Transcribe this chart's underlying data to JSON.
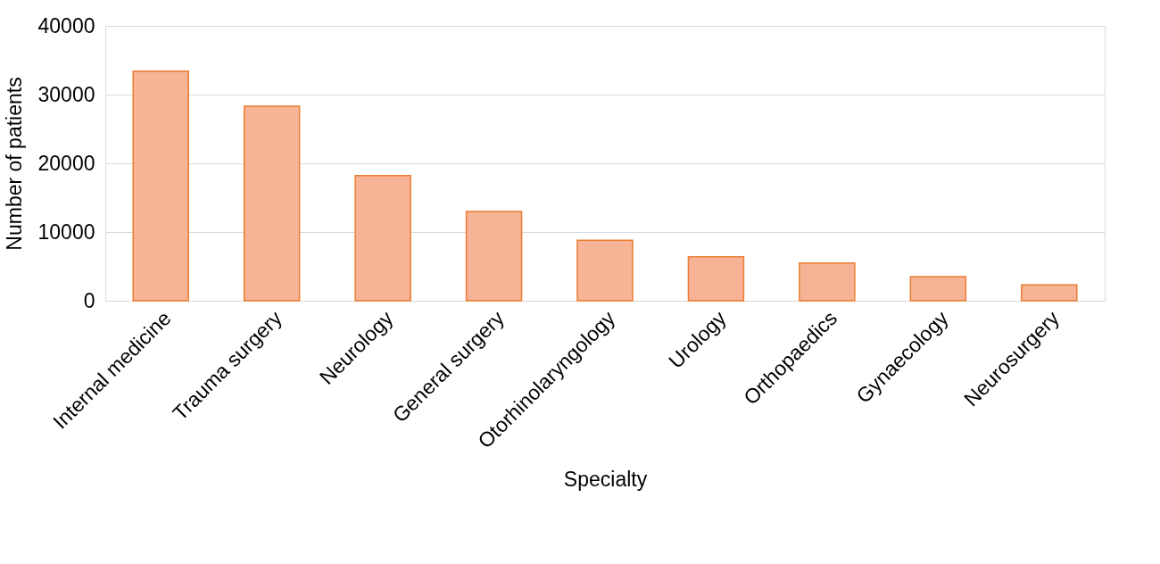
{
  "chart_data": {
    "type": "bar",
    "xlabel": "Specialty",
    "ylabel": "Number of patients",
    "categories": [
      "Internal medicine",
      "Trauma surgery",
      "Neurology",
      "General surgery",
      "Otorhinolaryngology",
      "Urology",
      "Orthopaedics",
      "Gynaecology",
      "Neurosurgery"
    ],
    "values": [
      33400,
      28300,
      18200,
      13000,
      8800,
      6400,
      5500,
      3500,
      2300
    ],
    "color": "#f6b396",
    "ylim": [
      0,
      40000
    ],
    "yticks": [
      0,
      10000,
      20000,
      30000,
      40000
    ],
    "grid": "y"
  }
}
